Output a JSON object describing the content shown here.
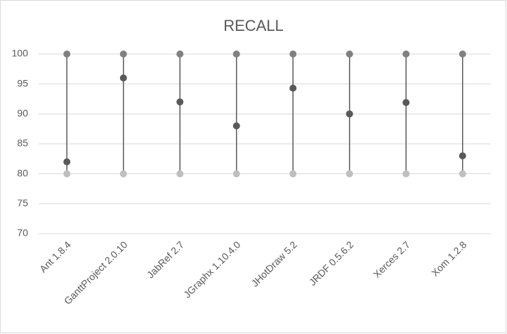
{
  "chart_data": {
    "type": "hilo",
    "title": "RECALL",
    "categories": [
      "Ant 1.8.4",
      "GanttProject  2.0.10",
      "JabRef 2.7",
      "JGraphx 1.10.4.0",
      "JHotDraw 5.2",
      "JRDF 0.5.6.2",
      "Xerces 2.7",
      "Xom 1.2.8"
    ],
    "series": [
      {
        "color": "#808080",
        "values": [
          100,
          100,
          100,
          100,
          100,
          100,
          100,
          100
        ]
      },
      {
        "color": "#595959",
        "values": [
          82,
          96,
          92,
          88,
          94.3,
          90,
          91.9,
          83
        ]
      },
      {
        "color": "#bfbfbf",
        "values": [
          80,
          80,
          80,
          80,
          80,
          80,
          80,
          80
        ]
      }
    ],
    "line_color": "#595959",
    "ylim": [
      70,
      100
    ],
    "yticks": [
      70,
      75,
      80,
      85,
      90,
      95,
      100
    ],
    "grid": true
  }
}
